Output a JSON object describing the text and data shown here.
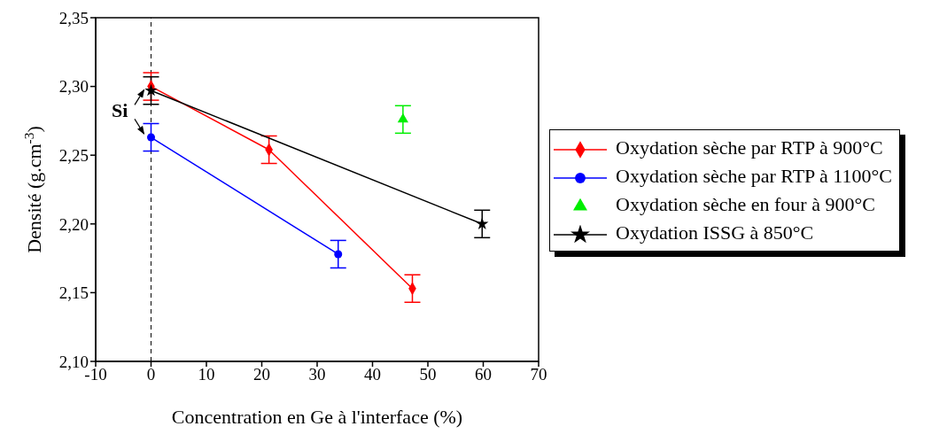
{
  "chart_data": {
    "type": "line",
    "xlabel": "Concentration en Ge à l'interface (%)",
    "ylabel": "Densité (g.cm$^{-3}$)",
    "xlim": [
      -10,
      70
    ],
    "xticks": [
      -10,
      0,
      10,
      20,
      30,
      40,
      50,
      60,
      70
    ],
    "ylim": [
      2.1,
      2.35
    ],
    "yticks": [
      {
        "value": 2.1,
        "label": "2,10"
      },
      {
        "value": 2.15,
        "label": "2,15"
      },
      {
        "value": 2.2,
        "label": "2,20"
      },
      {
        "value": 2.25,
        "label": "2,25"
      },
      {
        "value": 2.3,
        "label": "2,30"
      },
      {
        "value": 2.35,
        "label": "2,35"
      }
    ],
    "series": [
      {
        "name": "Oxydation sèche par RTP à 900°C",
        "type": "line",
        "marker": "diamond",
        "color": "#ff0000",
        "x": [
          0,
          21.3,
          47.2
        ],
        "values": [
          2.3,
          2.254,
          2.153
        ],
        "errors": [
          0.01,
          0.01,
          0.01
        ]
      },
      {
        "name": "Oxydation sèche par RTP à 1100°C",
        "type": "line",
        "marker": "circle",
        "color": "#0000ff",
        "x": [
          0,
          33.8
        ],
        "values": [
          2.263,
          2.178
        ],
        "errors": [
          0.01,
          0.01
        ]
      },
      {
        "name": "Oxydation sèche en four à 900°C",
        "type": "scatter",
        "marker": "triangle",
        "color": "#00ee00",
        "x": [
          45.5
        ],
        "values": [
          2.276
        ],
        "errors": [
          0.01
        ]
      },
      {
        "name": "Oxydation ISSG à 850°C",
        "type": "line",
        "marker": "star",
        "color": "#000000",
        "x": [
          0,
          59.8
        ],
        "values": [
          2.297,
          2.2
        ],
        "errors": [
          0.01,
          0.01
        ]
      }
    ],
    "ref_lines": [
      {
        "axis": "x",
        "value": 0,
        "line_style": "dashed",
        "color": "#000000"
      }
    ],
    "annotations": [
      "Si"
    ],
    "legend": "right"
  }
}
